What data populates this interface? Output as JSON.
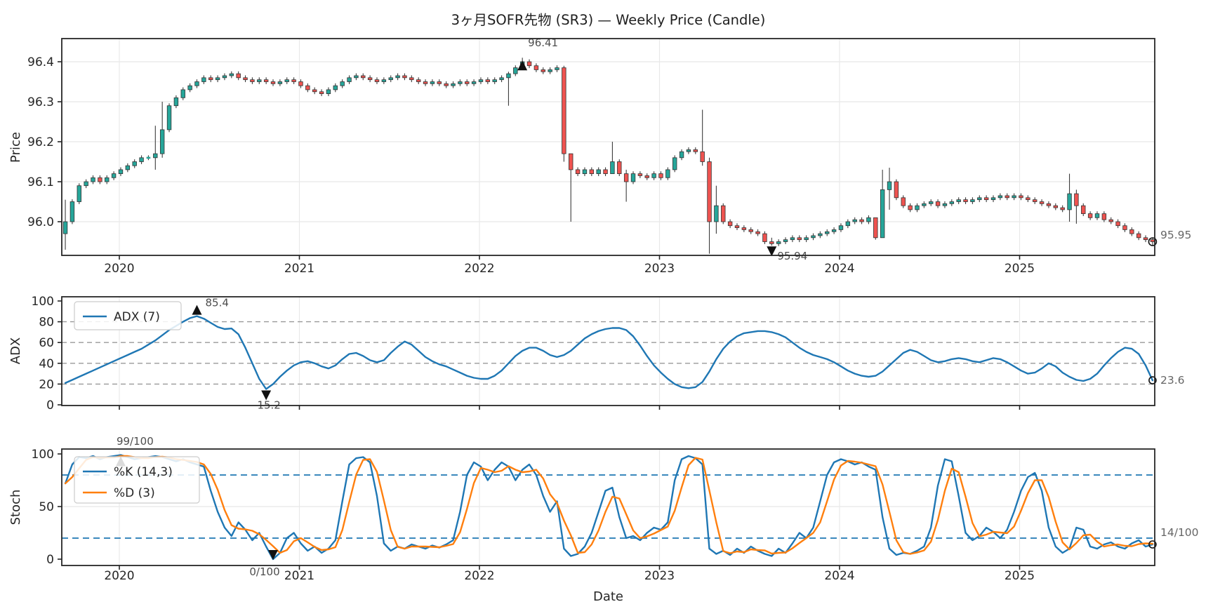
{
  "title": "3ヶ月SOFR先物 (SR3) — Weekly Price (Candle)",
  "colors": {
    "up": "#26a69a",
    "down": "#ef5350",
    "wick": "#3c3c3c",
    "candle_edge": "#333333",
    "adx_line": "#1f77b4",
    "k_line": "#1f77b4",
    "d_line": "#ff7f0e",
    "grid": "#e8e8e8",
    "dashed_grid": "#999999",
    "threshold": "#1f77b4",
    "spine": "#262626",
    "tick_text": "#262626",
    "annot_text": "#4d4d4d",
    "side_text": "#666666",
    "marker": "#111111"
  },
  "chart_data": {
    "type": "candlestick+indicators",
    "frequency": "weekly (2-week sampling)",
    "x_axis": {
      "label": "Date",
      "ticks": [
        2020,
        2021,
        2022,
        2023,
        2024,
        2025
      ],
      "range": [
        2019.68,
        2025.75
      ]
    },
    "start_year": 2019.7,
    "step_years": 0.0384615,
    "panels": [
      {
        "id": "price",
        "type": "candle",
        "ylabel": "Price",
        "ytick_labels": [
          "96.0",
          "96.1",
          "96.2",
          "96.3",
          "96.4"
        ],
        "yticks": [
          96.0,
          96.1,
          96.2,
          96.3,
          96.4
        ],
        "ylim": [
          95.916,
          96.458
        ],
        "open_first": 95.97,
        "close": [
          96.0,
          96.05,
          96.09,
          96.1,
          96.11,
          96.1,
          96.11,
          96.12,
          96.13,
          96.14,
          96.15,
          96.16,
          96.16,
          96.17,
          96.23,
          96.29,
          96.31,
          96.33,
          96.34,
          96.35,
          96.36,
          96.355,
          96.36,
          96.365,
          96.37,
          96.36,
          96.355,
          96.35,
          96.355,
          96.35,
          96.345,
          96.35,
          96.355,
          96.35,
          96.34,
          96.33,
          96.325,
          96.32,
          96.33,
          96.34,
          96.35,
          96.36,
          96.365,
          96.36,
          96.355,
          96.35,
          96.355,
          96.36,
          96.365,
          96.36,
          96.355,
          96.35,
          96.345,
          96.35,
          96.345,
          96.34,
          96.345,
          96.35,
          96.345,
          96.35,
          96.355,
          96.35,
          96.355,
          96.36,
          96.37,
          96.385,
          96.4,
          96.39,
          96.38,
          96.375,
          96.38,
          96.385,
          96.17,
          96.13,
          96.12,
          96.13,
          96.12,
          96.13,
          96.12,
          96.15,
          96.12,
          96.1,
          96.12,
          96.115,
          96.11,
          96.12,
          96.11,
          96.13,
          96.16,
          96.175,
          96.18,
          96.175,
          96.15,
          96.0,
          96.04,
          96.0,
          95.99,
          95.985,
          95.98,
          95.975,
          95.97,
          95.95,
          95.945,
          95.95,
          95.955,
          95.96,
          95.955,
          95.96,
          95.965,
          95.97,
          95.975,
          95.98,
          95.99,
          96.0,
          96.005,
          96.0,
          96.01,
          95.96,
          96.08,
          96.1,
          96.06,
          96.04,
          96.03,
          96.04,
          96.045,
          96.05,
          96.04,
          96.045,
          96.05,
          96.055,
          96.05,
          96.055,
          96.06,
          96.055,
          96.06,
          96.065,
          96.06,
          96.065,
          96.06,
          96.055,
          96.05,
          96.045,
          96.04,
          96.035,
          96.03,
          96.07,
          96.04,
          96.02,
          96.01,
          96.02,
          96.005,
          96.0,
          95.99,
          95.98,
          95.97,
          95.96,
          95.955,
          95.95
        ],
        "wicks": {
          "0": [
            96.055,
            95.93
          ],
          "13": [
            96.24,
            96.13
          ],
          "14": [
            96.3,
            96.16
          ],
          "64": [
            96.375,
            96.29
          ],
          "66": [
            96.41,
            96.385
          ],
          "72": [
            96.39,
            96.15
          ],
          "73": [
            96.17,
            96.0
          ],
          "79": [
            96.2,
            96.12
          ],
          "81": [
            96.13,
            96.05
          ],
          "92": [
            96.28,
            96.14
          ],
          "93": [
            96.16,
            95.92
          ],
          "94": [
            96.09,
            95.97
          ],
          "102": [
            95.96,
            95.94
          ],
          "117": [
            96.01,
            95.955
          ],
          "118": [
            96.13,
            95.96
          ],
          "119": [
            96.135,
            96.03
          ],
          "145": [
            96.12,
            96.0
          ],
          "146": [
            96.08,
            95.995
          ],
          "157": [
            95.96,
            95.94
          ]
        },
        "annotations": {
          "max": {
            "index": 66,
            "value": 96.41,
            "label": "96.41"
          },
          "min": {
            "index": 102,
            "value": 95.94,
            "label": "95.94"
          },
          "last": {
            "value": 95.95,
            "label": "95.95"
          }
        }
      },
      {
        "id": "adx",
        "type": "line",
        "ylabel": "ADX",
        "legend": [
          "ADX (7)"
        ],
        "yticks": [
          0,
          20,
          40,
          60,
          80,
          100
        ],
        "ylim": [
          0,
          104
        ],
        "dashed_levels": [
          20,
          40,
          60,
          80
        ],
        "values": [
          21,
          24,
          27,
          30,
          33,
          36,
          39,
          42,
          45,
          48,
          51,
          54,
          58,
          62,
          67,
          72,
          76,
          80,
          83.5,
          85.4,
          83,
          79,
          75,
          73,
          73.5,
          68,
          55,
          40,
          25,
          15.2,
          20,
          27,
          33,
          38,
          41,
          42,
          40,
          37,
          35,
          38,
          44,
          49,
          50,
          47,
          43,
          41,
          43,
          50,
          56,
          61,
          58,
          52,
          46,
          42,
          39,
          37,
          34,
          31,
          28,
          26,
          25,
          25,
          28,
          33,
          40,
          47,
          52,
          55,
          55,
          52,
          48,
          46,
          48,
          52,
          58,
          64,
          68,
          71,
          73,
          74,
          74,
          72,
          66,
          57,
          47,
          38,
          31,
          25,
          20,
          17,
          16,
          17,
          22,
          32,
          44,
          54,
          61,
          66,
          69,
          70,
          71,
          71,
          70,
          68,
          65,
          60,
          55,
          51,
          48,
          46,
          44,
          41,
          37,
          33,
          30,
          28,
          27,
          28,
          32,
          38,
          44,
          50,
          53,
          51,
          47,
          43,
          41,
          42,
          44,
          45,
          44,
          42,
          41,
          43,
          45,
          44,
          41,
          37,
          33,
          30,
          31,
          35,
          40,
          37,
          31,
          27,
          24,
          23,
          25,
          30,
          38,
          45,
          51,
          55,
          54,
          49,
          38,
          23.6
        ],
        "annotations": {
          "max": {
            "index": 19,
            "value": 85.4,
            "label": "85.4"
          },
          "min": {
            "index": 29,
            "value": 15.2,
            "label": "15.2"
          },
          "last": {
            "value": 23.6,
            "label": "23.6"
          }
        }
      },
      {
        "id": "stoch",
        "type": "line",
        "ylabel": "Stoch",
        "legend": [
          "%K (14,3)",
          "%D (3)"
        ],
        "yticks": [
          0,
          50,
          100
        ],
        "ylim": [
          -4,
          104
        ],
        "threshold_levels": [
          20,
          80
        ],
        "k": [
          72,
          90,
          97,
          96,
          98,
          95,
          97,
          98,
          99,
          97,
          95,
          96,
          97,
          98,
          97,
          95,
          93,
          95,
          92,
          90,
          88,
          65,
          45,
          30,
          22,
          35,
          28,
          18,
          25,
          12,
          0,
          6,
          20,
          25,
          15,
          8,
          12,
          6,
          10,
          18,
          55,
          90,
          96,
          97,
          92,
          60,
          15,
          8,
          12,
          10,
          14,
          12,
          10,
          13,
          11,
          14,
          18,
          45,
          80,
          92,
          88,
          75,
          85,
          92,
          88,
          75,
          85,
          90,
          80,
          60,
          45,
          55,
          10,
          3,
          5,
          12,
          25,
          45,
          65,
          68,
          40,
          20,
          22,
          18,
          25,
          30,
          28,
          35,
          75,
          95,
          98,
          96,
          90,
          10,
          5,
          8,
          4,
          10,
          6,
          12,
          8,
          5,
          3,
          10,
          6,
          15,
          25,
          20,
          30,
          55,
          80,
          92,
          95,
          93,
          90,
          92,
          88,
          85,
          40,
          10,
          4,
          6,
          5,
          8,
          12,
          30,
          70,
          95,
          93,
          60,
          25,
          18,
          22,
          30,
          26,
          20,
          28,
          45,
          65,
          78,
          82,
          65,
          30,
          12,
          6,
          10,
          30,
          28,
          12,
          10,
          14,
          16,
          12,
          10,
          15,
          18,
          12,
          14
        ],
        "d_derivation": "3-period moving average of k",
        "annotations": {
          "max": {
            "index": 8,
            "value": 99,
            "label": "99/100"
          },
          "min": {
            "index": 30,
            "value": 0,
            "label": "0/100"
          },
          "last": {
            "value": 14,
            "label": "14/100"
          }
        }
      }
    ]
  }
}
